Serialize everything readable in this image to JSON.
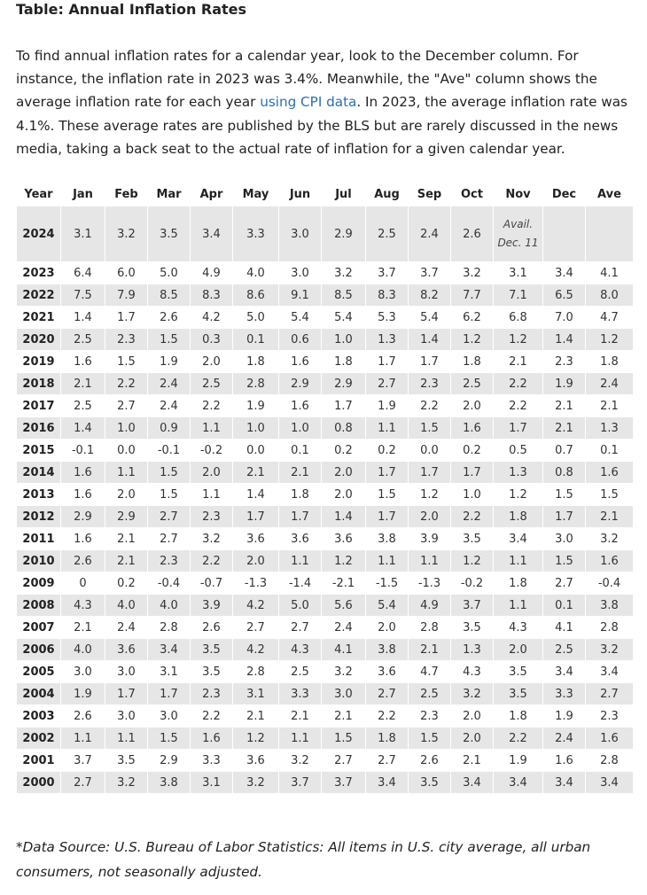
{
  "title": "Table: Annual Inflation Rates",
  "intro": {
    "part1": "To find annual inflation rates for a calendar year, look to the December column. For instance, the inflation rate in 2023 was 3.4%. Meanwhile, the \"Ave\" column shows the average inflation rate for each year ",
    "link": "using CPI data",
    "part2": ". In 2023, the average inflation rate was 4.1%. These average rates are published by the BLS but are rarely discussed in the news media, taking a back seat to the actual rate of inflation for a given calendar year."
  },
  "table": {
    "headers": [
      "Year",
      "Jan",
      "Feb",
      "Mar",
      "Apr",
      "May",
      "Jun",
      "Jul",
      "Aug",
      "Sep",
      "Oct",
      "Nov",
      "Dec",
      "Ave"
    ],
    "rows": [
      [
        "2024",
        "3.1",
        "3.2",
        "3.5",
        "3.4",
        "3.3",
        "3.0",
        "2.9",
        "2.5",
        "2.4",
        "2.6",
        "Avail. Dec. 11",
        "",
        ""
      ],
      [
        "2023",
        "6.4",
        "6.0",
        "5.0",
        "4.9",
        "4.0",
        "3.0",
        "3.2",
        "3.7",
        "3.7",
        "3.2",
        "3.1",
        "3.4",
        "4.1"
      ],
      [
        "2022",
        "7.5",
        "7.9",
        "8.5",
        "8.3",
        "8.6",
        "9.1",
        "8.5",
        "8.3",
        "8.2",
        "7.7",
        "7.1",
        "6.5",
        "8.0"
      ],
      [
        "2021",
        "1.4",
        "1.7",
        "2.6",
        "4.2",
        "5.0",
        "5.4",
        "5.4",
        "5.3",
        "5.4",
        "6.2",
        "6.8",
        "7.0",
        "4.7"
      ],
      [
        "2020",
        "2.5",
        "2.3",
        "1.5",
        "0.3",
        "0.1",
        "0.6",
        "1.0",
        "1.3",
        "1.4",
        "1.2",
        "1.2",
        "1.4",
        "1.2"
      ],
      [
        "2019",
        "1.6",
        "1.5",
        "1.9",
        "2.0",
        "1.8",
        "1.6",
        "1.8",
        "1.7",
        "1.7",
        "1.8",
        "2.1",
        "2.3",
        "1.8"
      ],
      [
        "2018",
        "2.1",
        "2.2",
        "2.4",
        "2.5",
        "2.8",
        "2.9",
        "2.9",
        "2.7",
        "2.3",
        "2.5",
        "2.2",
        "1.9",
        "2.4"
      ],
      [
        "2017",
        "2.5",
        "2.7",
        "2.4",
        "2.2",
        "1.9",
        "1.6",
        "1.7",
        "1.9",
        "2.2",
        "2.0",
        "2.2",
        "2.1",
        "2.1"
      ],
      [
        "2016",
        "1.4",
        "1.0",
        "0.9",
        "1.1",
        "1.0",
        "1.0",
        "0.8",
        "1.1",
        "1.5",
        "1.6",
        "1.7",
        "2.1",
        "1.3"
      ],
      [
        "2015",
        "-0.1",
        "0.0",
        "-0.1",
        "-0.2",
        "0.0",
        "0.1",
        "0.2",
        "0.2",
        "0.0",
        "0.2",
        "0.5",
        "0.7",
        "0.1"
      ],
      [
        "2014",
        "1.6",
        "1.1",
        "1.5",
        "2.0",
        "2.1",
        "2.1",
        "2.0",
        "1.7",
        "1.7",
        "1.7",
        "1.3",
        "0.8",
        "1.6"
      ],
      [
        "2013",
        "1.6",
        "2.0",
        "1.5",
        "1.1",
        "1.4",
        "1.8",
        "2.0",
        "1.5",
        "1.2",
        "1.0",
        "1.2",
        "1.5",
        "1.5"
      ],
      [
        "2012",
        "2.9",
        "2.9",
        "2.7",
        "2.3",
        "1.7",
        "1.7",
        "1.4",
        "1.7",
        "2.0",
        "2.2",
        "1.8",
        "1.7",
        "2.1"
      ],
      [
        "2011",
        "1.6",
        "2.1",
        "2.7",
        "3.2",
        "3.6",
        "3.6",
        "3.6",
        "3.8",
        "3.9",
        "3.5",
        "3.4",
        "3.0",
        "3.2"
      ],
      [
        "2010",
        "2.6",
        "2.1",
        "2.3",
        "2.2",
        "2.0",
        "1.1",
        "1.2",
        "1.1",
        "1.1",
        "1.2",
        "1.1",
        "1.5",
        "1.6"
      ],
      [
        "2009",
        "0",
        "0.2",
        "-0.4",
        "-0.7",
        "-1.3",
        "-1.4",
        "-2.1",
        "-1.5",
        "-1.3",
        "-0.2",
        "1.8",
        "2.7",
        "-0.4"
      ],
      [
        "2008",
        "4.3",
        "4.0",
        "4.0",
        "3.9",
        "4.2",
        "5.0",
        "5.6",
        "5.4",
        "4.9",
        "3.7",
        "1.1",
        "0.1",
        "3.8"
      ],
      [
        "2007",
        "2.1",
        "2.4",
        "2.8",
        "2.6",
        "2.7",
        "2.7",
        "2.4",
        "2.0",
        "2.8",
        "3.5",
        "4.3",
        "4.1",
        "2.8"
      ],
      [
        "2006",
        "4.0",
        "3.6",
        "3.4",
        "3.5",
        "4.2",
        "4.3",
        "4.1",
        "3.8",
        "2.1",
        "1.3",
        "2.0",
        "2.5",
        "3.2"
      ],
      [
        "2005",
        "3.0",
        "3.0",
        "3.1",
        "3.5",
        "2.8",
        "2.5",
        "3.2",
        "3.6",
        "4.7",
        "4.3",
        "3.5",
        "3.4",
        "3.4"
      ],
      [
        "2004",
        "1.9",
        "1.7",
        "1.7",
        "2.3",
        "3.1",
        "3.3",
        "3.0",
        "2.7",
        "2.5",
        "3.2",
        "3.5",
        "3.3",
        "2.7"
      ],
      [
        "2003",
        "2.6",
        "3.0",
        "3.0",
        "2.2",
        "2.1",
        "2.1",
        "2.1",
        "2.2",
        "2.3",
        "2.0",
        "1.8",
        "1.9",
        "2.3"
      ],
      [
        "2002",
        "1.1",
        "1.1",
        "1.5",
        "1.6",
        "1.2",
        "1.1",
        "1.5",
        "1.8",
        "1.5",
        "2.0",
        "2.2",
        "2.4",
        "1.6"
      ],
      [
        "2001",
        "3.7",
        "3.5",
        "2.9",
        "3.3",
        "3.6",
        "3.2",
        "2.7",
        "2.7",
        "2.6",
        "2.1",
        "1.9",
        "1.6",
        "2.8"
      ],
      [
        "2000",
        "2.7",
        "3.2",
        "3.8",
        "3.1",
        "3.2",
        "3.7",
        "3.7",
        "3.4",
        "3.5",
        "3.4",
        "3.4",
        "3.4",
        "3.4"
      ]
    ]
  },
  "footnote": "*Data Source: U.S. Bureau of Labor Statistics: All items in U.S. city average, all urban consumers, not seasonally adjusted."
}
